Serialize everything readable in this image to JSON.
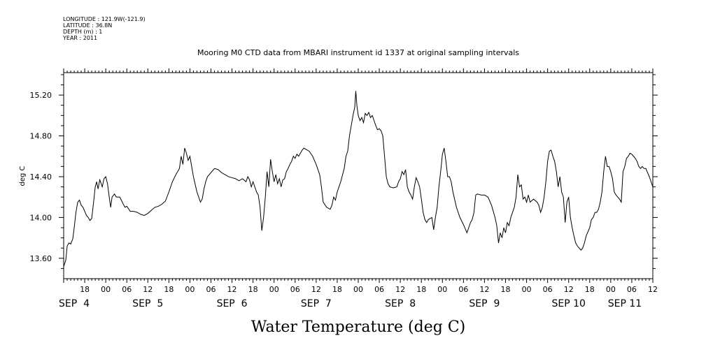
{
  "header": {
    "longitude": "LONGITUDE : 121.9W(-121.9)",
    "latitude": "LATITUDE : 36.8N",
    "depth": "DEPTH (m) : 1",
    "year": "YEAR : 2011"
  },
  "chart_data": {
    "type": "line",
    "title": "Mooring M0 CTD data from MBARI instrument id 1337 at original sampling intervals",
    "xlabel": "Water Temperature (deg C)",
    "ylabel": "deg C",
    "ylim": [
      13.4,
      15.42
    ],
    "xlim": [
      0,
      168
    ],
    "x_unit": "hours since SEP 4 12:00",
    "y_ticks": [
      "13.60",
      "14.00",
      "14.40",
      "14.80",
      "15.20"
    ],
    "y_tick_values": [
      13.6,
      14.0,
      14.4,
      14.8,
      15.2
    ],
    "x_hour_labels": [
      "18",
      "00",
      "06",
      "12",
      "18",
      "00",
      "06",
      "12",
      "18",
      "00",
      "06",
      "12",
      "18",
      "00",
      "06",
      "12",
      "18",
      "00",
      "06",
      "12",
      "18",
      "00",
      "06",
      "12",
      "18",
      "00",
      "06",
      "12"
    ],
    "date_labels": [
      "SEP  4",
      "SEP  5",
      "SEP  6",
      "SEP  7",
      "SEP  8",
      "SEP  9",
      "SEP 10",
      "SEP 11"
    ],
    "grid": false,
    "series": [
      {
        "values": [
          [
            0,
            13.52
          ],
          [
            0.6,
            13.58
          ],
          [
            1,
            13.72
          ],
          [
            1.5,
            13.75
          ],
          [
            2,
            13.74
          ],
          [
            2.6,
            13.79
          ],
          [
            3,
            13.9
          ],
          [
            3.5,
            14.05
          ],
          [
            4,
            14.15
          ],
          [
            4.5,
            14.17
          ],
          [
            5,
            14.12
          ],
          [
            5.5,
            14.1
          ],
          [
            6,
            14.06
          ],
          [
            6.5,
            14.02
          ],
          [
            7,
            14.0
          ],
          [
            7.5,
            13.97
          ],
          [
            8,
            13.99
          ],
          [
            8.5,
            14.14
          ],
          [
            9,
            14.3
          ],
          [
            9.4,
            14.35
          ],
          [
            9.8,
            14.28
          ],
          [
            10.3,
            14.37
          ],
          [
            11,
            14.3
          ],
          [
            11.5,
            14.38
          ],
          [
            12,
            14.4
          ],
          [
            12.5,
            14.33
          ],
          [
            13,
            14.2
          ],
          [
            13.4,
            14.1
          ],
          [
            13.8,
            14.2
          ],
          [
            14.5,
            14.23
          ],
          [
            15,
            14.2
          ],
          [
            16,
            14.2
          ],
          [
            17,
            14.13
          ],
          [
            17.5,
            14.1
          ],
          [
            18,
            14.11
          ],
          [
            19,
            14.06
          ],
          [
            20,
            14.06
          ],
          [
            21,
            14.05
          ],
          [
            22,
            14.03
          ],
          [
            23,
            14.02
          ],
          [
            24,
            14.04
          ],
          [
            25,
            14.07
          ],
          [
            26,
            14.1
          ],
          [
            27,
            14.11
          ],
          [
            28,
            14.13
          ],
          [
            29,
            14.16
          ],
          [
            30,
            14.25
          ],
          [
            31,
            14.35
          ],
          [
            32,
            14.42
          ],
          [
            33,
            14.48
          ],
          [
            33.5,
            14.6
          ],
          [
            34,
            14.52
          ],
          [
            34.5,
            14.68
          ],
          [
            35,
            14.63
          ],
          [
            35.5,
            14.56
          ],
          [
            36,
            14.6
          ],
          [
            36.5,
            14.5
          ],
          [
            37,
            14.4
          ],
          [
            38,
            14.25
          ],
          [
            39,
            14.15
          ],
          [
            39.5,
            14.18
          ],
          [
            40,
            14.28
          ],
          [
            40.5,
            14.35
          ],
          [
            41,
            14.4
          ],
          [
            42,
            14.44
          ],
          [
            43,
            14.48
          ],
          [
            44,
            14.47
          ],
          [
            45,
            14.44
          ],
          [
            46,
            14.42
          ],
          [
            47,
            14.4
          ],
          [
            48,
            14.39
          ],
          [
            49,
            14.38
          ],
          [
            50,
            14.36
          ],
          [
            51,
            14.38
          ],
          [
            52,
            14.35
          ],
          [
            52.5,
            14.4
          ],
          [
            53,
            14.37
          ],
          [
            53.5,
            14.3
          ],
          [
            54,
            14.35
          ],
          [
            55,
            14.25
          ],
          [
            55.5,
            14.22
          ],
          [
            56,
            14.1
          ],
          [
            56.5,
            13.87
          ],
          [
            57,
            14.0
          ],
          [
            57.5,
            14.2
          ],
          [
            58,
            14.45
          ],
          [
            58.5,
            14.3
          ],
          [
            59,
            14.57
          ],
          [
            59.5,
            14.45
          ],
          [
            60,
            14.35
          ],
          [
            60.5,
            14.42
          ],
          [
            61,
            14.33
          ],
          [
            61.5,
            14.38
          ],
          [
            62,
            14.3
          ],
          [
            62.5,
            14.37
          ],
          [
            63,
            14.38
          ],
          [
            63.5,
            14.45
          ],
          [
            64,
            14.48
          ],
          [
            64.5,
            14.52
          ],
          [
            65,
            14.55
          ],
          [
            65.5,
            14.6
          ],
          [
            66,
            14.58
          ],
          [
            66.5,
            14.62
          ],
          [
            67,
            14.6
          ],
          [
            67.5,
            14.63
          ],
          [
            68,
            14.66
          ],
          [
            68.5,
            14.68
          ],
          [
            69,
            14.67
          ],
          [
            70,
            14.65
          ],
          [
            71,
            14.6
          ],
          [
            72,
            14.52
          ],
          [
            73,
            14.42
          ],
          [
            73.5,
            14.3
          ],
          [
            74,
            14.15
          ],
          [
            75,
            14.1
          ],
          [
            76,
            14.08
          ],
          [
            76.5,
            14.12
          ],
          [
            77,
            14.2
          ],
          [
            77.5,
            14.17
          ],
          [
            78,
            14.25
          ],
          [
            79,
            14.35
          ],
          [
            80,
            14.48
          ],
          [
            80.5,
            14.6
          ],
          [
            81,
            14.65
          ],
          [
            81.5,
            14.8
          ],
          [
            82,
            14.9
          ],
          [
            82.5,
            15.0
          ],
          [
            83,
            15.08
          ],
          [
            83.3,
            15.24
          ],
          [
            83.6,
            15.1
          ],
          [
            84,
            15.0
          ],
          [
            84.5,
            14.95
          ],
          [
            85,
            14.98
          ],
          [
            85.5,
            14.93
          ],
          [
            86,
            15.02
          ],
          [
            86.5,
            15.0
          ],
          [
            87,
            15.03
          ],
          [
            87.5,
            14.98
          ],
          [
            88,
            15.0
          ],
          [
            88.5,
            14.95
          ],
          [
            89,
            14.9
          ],
          [
            89.5,
            14.86
          ],
          [
            90,
            14.87
          ],
          [
            90.5,
            14.85
          ],
          [
            91,
            14.8
          ],
          [
            91.5,
            14.6
          ],
          [
            92,
            14.4
          ],
          [
            92.5,
            14.33
          ],
          [
            93,
            14.3
          ],
          [
            94,
            14.29
          ],
          [
            95,
            14.3
          ],
          [
            95.5,
            14.35
          ],
          [
            96,
            14.38
          ],
          [
            96.5,
            14.45
          ],
          [
            97,
            14.42
          ],
          [
            97.5,
            14.47
          ],
          [
            98,
            14.3
          ],
          [
            98.5,
            14.25
          ],
          [
            99,
            14.22
          ],
          [
            99.5,
            14.18
          ],
          [
            100,
            14.3
          ],
          [
            100.5,
            14.39
          ],
          [
            101,
            14.35
          ],
          [
            101.5,
            14.3
          ],
          [
            102,
            14.18
          ],
          [
            102.5,
            14.05
          ],
          [
            103,
            13.98
          ],
          [
            103.5,
            13.95
          ],
          [
            104,
            13.98
          ],
          [
            105,
            14.0
          ],
          [
            105.5,
            13.88
          ],
          [
            106,
            14.0
          ],
          [
            106.5,
            14.1
          ],
          [
            107,
            14.3
          ],
          [
            107.5,
            14.45
          ],
          [
            108,
            14.62
          ],
          [
            108.5,
            14.68
          ],
          [
            109,
            14.55
          ],
          [
            109.5,
            14.4
          ],
          [
            110,
            14.4
          ],
          [
            110.5,
            14.35
          ],
          [
            111,
            14.25
          ],
          [
            112,
            14.1
          ],
          [
            113,
            14.0
          ],
          [
            114,
            13.93
          ],
          [
            115,
            13.85
          ],
          [
            115.5,
            13.9
          ],
          [
            116,
            13.95
          ],
          [
            116.5,
            13.98
          ],
          [
            117,
            14.05
          ],
          [
            117.5,
            14.22
          ],
          [
            118,
            14.23
          ],
          [
            119,
            14.22
          ],
          [
            120,
            14.22
          ],
          [
            121,
            14.2
          ],
          [
            122,
            14.12
          ],
          [
            123,
            14.0
          ],
          [
            123.5,
            13.92
          ],
          [
            124,
            13.75
          ],
          [
            124.5,
            13.85
          ],
          [
            125,
            13.8
          ],
          [
            125.5,
            13.9
          ],
          [
            126,
            13.85
          ],
          [
            126.5,
            13.95
          ],
          [
            127,
            13.92
          ],
          [
            127.5,
            14.0
          ],
          [
            128,
            14.05
          ],
          [
            128.5,
            14.1
          ],
          [
            129,
            14.2
          ],
          [
            129.5,
            14.42
          ],
          [
            130,
            14.3
          ],
          [
            130.5,
            14.32
          ],
          [
            131,
            14.18
          ],
          [
            131.5,
            14.2
          ],
          [
            132,
            14.15
          ],
          [
            132.5,
            14.22
          ],
          [
            133,
            14.15
          ],
          [
            134,
            14.18
          ],
          [
            135,
            14.15
          ],
          [
            135.5,
            14.12
          ],
          [
            136,
            14.05
          ],
          [
            136.5,
            14.1
          ],
          [
            137,
            14.2
          ],
          [
            137.5,
            14.35
          ],
          [
            138,
            14.55
          ],
          [
            138.5,
            14.65
          ],
          [
            139,
            14.66
          ],
          [
            139.5,
            14.6
          ],
          [
            140,
            14.55
          ],
          [
            140.5,
            14.45
          ],
          [
            141,
            14.3
          ],
          [
            141.5,
            14.4
          ],
          [
            142,
            14.25
          ],
          [
            142.5,
            14.2
          ],
          [
            143,
            13.95
          ],
          [
            143.5,
            14.15
          ],
          [
            144,
            14.2
          ],
          [
            144.5,
            14.0
          ],
          [
            145,
            13.9
          ],
          [
            145.5,
            13.82
          ],
          [
            146,
            13.75
          ],
          [
            146.5,
            13.72
          ],
          [
            147,
            13.7
          ],
          [
            147.5,
            13.68
          ],
          [
            148,
            13.7
          ],
          [
            148.5,
            13.75
          ],
          [
            149,
            13.82
          ],
          [
            150,
            13.9
          ],
          [
            150.5,
            13.98
          ],
          [
            151,
            14.0
          ],
          [
            151.5,
            14.05
          ],
          [
            152,
            14.05
          ],
          [
            152.5,
            14.08
          ],
          [
            153,
            14.15
          ],
          [
            153.5,
            14.25
          ],
          [
            154,
            14.45
          ],
          [
            154.5,
            14.6
          ],
          [
            155,
            14.5
          ],
          [
            155.5,
            14.5
          ],
          [
            156,
            14.45
          ],
          [
            156.5,
            14.38
          ],
          [
            157,
            14.25
          ],
          [
            157.5,
            14.22
          ],
          [
            158,
            14.2
          ],
          [
            158.5,
            14.18
          ],
          [
            159,
            14.15
          ],
          [
            159.5,
            14.45
          ],
          [
            160,
            14.5
          ],
          [
            160.5,
            14.58
          ],
          [
            161,
            14.6
          ],
          [
            161.5,
            14.63
          ],
          [
            162,
            14.62
          ],
          [
            162.5,
            14.6
          ],
          [
            163,
            14.58
          ],
          [
            163.5,
            14.55
          ],
          [
            164,
            14.5
          ],
          [
            164.5,
            14.48
          ],
          [
            165,
            14.5
          ],
          [
            165.5,
            14.48
          ],
          [
            166,
            14.48
          ],
          [
            166.5,
            14.44
          ],
          [
            167,
            14.4
          ],
          [
            167.5,
            14.35
          ],
          [
            168,
            14.3
          ]
        ]
      }
    ]
  }
}
